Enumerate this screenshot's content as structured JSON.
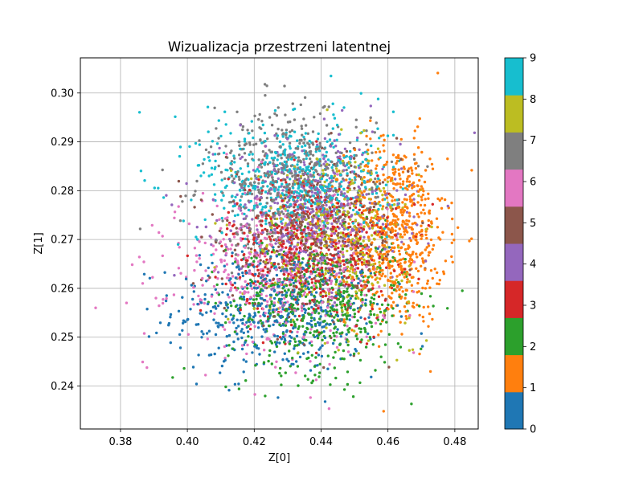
{
  "chart_data": {
    "type": "scatter",
    "title": "Wizualizacja przestrzeni latentnej",
    "xlabel": "Z[0]",
    "ylabel": "Z[1]",
    "xlim": [
      0.368,
      0.487
    ],
    "ylim": [
      0.2312,
      0.3072
    ],
    "xticks": [
      "0.38",
      "0.40",
      "0.42",
      "0.44",
      "0.46",
      "0.48"
    ],
    "xtick_values": [
      0.38,
      0.4,
      0.42,
      0.44,
      0.46,
      0.48
    ],
    "yticks": [
      "0.24",
      "0.25",
      "0.26",
      "0.27",
      "0.28",
      "0.29",
      "0.30"
    ],
    "ytick_values": [
      0.24,
      0.25,
      0.26,
      0.27,
      0.28,
      0.29,
      0.3
    ],
    "grid": true,
    "colorbar": {
      "ticks": [
        "0",
        "1",
        "2",
        "3",
        "4",
        "5",
        "6",
        "7",
        "8",
        "9"
      ],
      "colors": [
        "#1f77b4",
        "#ff7f0e",
        "#2ca02c",
        "#d62728",
        "#9467bd",
        "#8c564b",
        "#e377c2",
        "#7f7f7f",
        "#bcbd22",
        "#17becf"
      ]
    },
    "clusters": [
      {
        "label": 0,
        "cx": 0.427,
        "cy": 0.2555,
        "sx": 0.0155,
        "sy": 0.0065,
        "n": 520
      },
      {
        "label": 1,
        "cx": 0.4625,
        "cy": 0.2715,
        "sx": 0.0075,
        "sy": 0.0095,
        "n": 640
      },
      {
        "label": 2,
        "cx": 0.439,
        "cy": 0.2565,
        "sx": 0.0135,
        "sy": 0.007,
        "n": 520
      },
      {
        "label": 3,
        "cx": 0.4375,
        "cy": 0.2685,
        "sx": 0.0125,
        "sy": 0.0075,
        "n": 500
      },
      {
        "label": 4,
        "cx": 0.437,
        "cy": 0.2755,
        "sx": 0.0135,
        "sy": 0.0075,
        "n": 500
      },
      {
        "label": 5,
        "cx": 0.438,
        "cy": 0.2695,
        "sx": 0.0135,
        "sy": 0.0075,
        "n": 460
      },
      {
        "label": 6,
        "cx": 0.426,
        "cy": 0.2635,
        "sx": 0.016,
        "sy": 0.008,
        "n": 480
      },
      {
        "label": 7,
        "cx": 0.431,
        "cy": 0.2825,
        "sx": 0.0125,
        "sy": 0.007,
        "n": 500
      },
      {
        "label": 8,
        "cx": 0.4435,
        "cy": 0.2705,
        "sx": 0.012,
        "sy": 0.0085,
        "n": 420
      },
      {
        "label": 9,
        "cx": 0.4325,
        "cy": 0.282,
        "sx": 0.0145,
        "sy": 0.0065,
        "n": 520
      }
    ]
  }
}
